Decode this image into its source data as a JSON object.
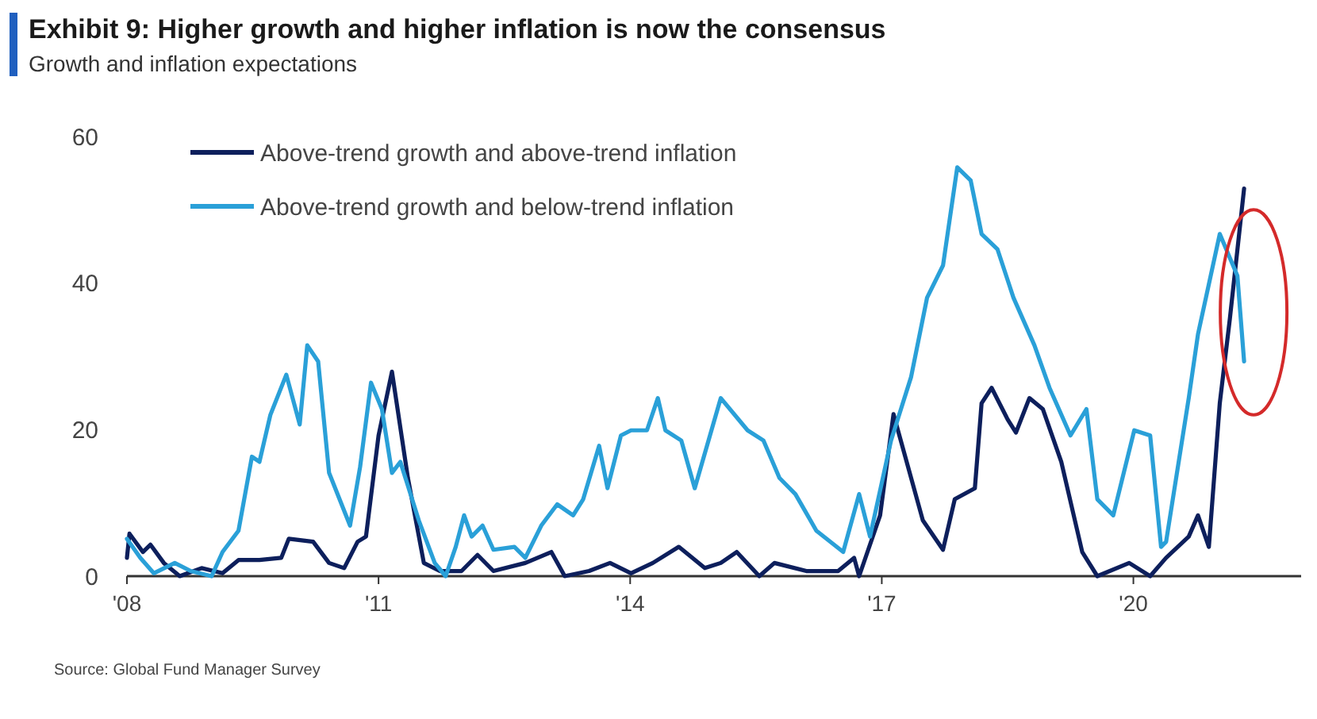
{
  "chart_data": {
    "type": "line",
    "title": "Exhibit 9: Higher growth and higher inflation is now the consensus",
    "subtitle": "Growth and inflation expectations",
    "annotations": [
      "Source: Global Fund Manager Survey"
    ],
    "xlim": [
      2008,
      2022
    ],
    "xticks": [
      {
        "value": 2008,
        "label": "'08"
      },
      {
        "value": 2011,
        "label": "'11"
      },
      {
        "value": 2014,
        "label": "'14"
      },
      {
        "value": 2017,
        "label": "'17"
      },
      {
        "value": 2020,
        "label": "'20"
      }
    ],
    "ylim": [
      0,
      60
    ],
    "yticks": [
      0,
      20,
      40,
      60
    ],
    "grid": false,
    "legend": "top left",
    "marker": "none",
    "line_style": "solid",
    "series": [
      {
        "name": "Above-trend growth and above-trend inflation",
        "color": "#0d1f5c",
        "x": [
          2008.0,
          2008.03,
          2008.19,
          2008.28,
          2008.44,
          2008.63,
          2008.89,
          2009.14,
          2009.33,
          2009.58,
          2009.84,
          2009.93,
          2010.22,
          2010.41,
          2010.59,
          2010.75,
          2010.85,
          2011.0,
          2011.16,
          2011.35,
          2011.54,
          2011.73,
          2011.99,
          2012.18,
          2012.37,
          2012.75,
          2013.06,
          2013.22,
          2013.51,
          2013.76,
          2014.01,
          2014.27,
          2014.58,
          2014.89,
          2015.08,
          2015.27,
          2015.54,
          2015.72,
          2016.1,
          2016.48,
          2016.67,
          2016.73,
          2016.98,
          2017.14,
          2017.49,
          2017.73,
          2017.87,
          2018.11,
          2018.19,
          2018.31,
          2018.5,
          2018.6,
          2018.76,
          2018.92,
          2019.14,
          2019.39,
          2019.57,
          2019.95,
          2020.2,
          2020.39,
          2020.66,
          2020.77,
          2020.9,
          2021.03,
          2021.15,
          2021.32
        ],
        "values": [
          2.5,
          5.8,
          3.3,
          4.3,
          1.8,
          0,
          1.1,
          0.4,
          2.2,
          2.2,
          2.5,
          5.1,
          4.7,
          1.8,
          1.1,
          4.7,
          5.4,
          19.2,
          27.9,
          13.4,
          1.8,
          0.7,
          0.7,
          2.9,
          0.7,
          1.8,
          3.3,
          0,
          0.7,
          1.8,
          0.4,
          1.8,
          4,
          1.1,
          1.8,
          3.3,
          0,
          1.8,
          0.7,
          0.7,
          2.5,
          0,
          8.3,
          22.1,
          7.6,
          3.6,
          10.5,
          12,
          23.6,
          25.7,
          21.4,
          19.6,
          24.3,
          22.8,
          15.6,
          3.3,
          0,
          1.8,
          0,
          2.5,
          5.4,
          8.3,
          4,
          23.6,
          35.1,
          52.9
        ]
      },
      {
        "name": "Above-trend growth and below-trend inflation",
        "color": "#2aa0d8",
        "x": [
          2008.0,
          2008.16,
          2008.32,
          2008.57,
          2008.76,
          2009.01,
          2009.14,
          2009.33,
          2009.49,
          2009.58,
          2009.71,
          2009.9,
          2010.06,
          2010.15,
          2010.28,
          2010.41,
          2010.66,
          2010.78,
          2010.91,
          2011.04,
          2011.16,
          2011.26,
          2011.48,
          2011.67,
          2011.8,
          2011.92,
          2012.02,
          2012.11,
          2012.24,
          2012.37,
          2012.62,
          2012.75,
          2012.94,
          2013.13,
          2013.32,
          2013.44,
          2013.63,
          2013.73,
          2013.89,
          2014.01,
          2014.2,
          2014.33,
          2014.42,
          2014.61,
          2014.77,
          2015.08,
          2015.4,
          2015.59,
          2015.78,
          2015.97,
          2016.22,
          2016.54,
          2016.73,
          2016.86,
          2017.11,
          2017.35,
          2017.54,
          2017.73,
          2017.9,
          2018.06,
          2018.19,
          2018.38,
          2018.57,
          2018.82,
          2019.0,
          2019.25,
          2019.44,
          2019.57,
          2019.76,
          2020.01,
          2020.2,
          2020.33,
          2020.39,
          2020.66,
          2020.77,
          2021.03,
          2021.24,
          2021.32
        ],
        "values": [
          5.1,
          2.5,
          0.4,
          1.8,
          0.7,
          0,
          3.3,
          6.2,
          16.3,
          15.6,
          22,
          27.5,
          20.7,
          31.5,
          29.3,
          14.1,
          6.9,
          14.9,
          26.4,
          22.8,
          14.1,
          15.6,
          7.6,
          1.8,
          0,
          4,
          8.3,
          5.4,
          6.9,
          3.6,
          4,
          2.5,
          6.9,
          9.8,
          8.3,
          10.5,
          17.8,
          12,
          19.2,
          19.9,
          19.9,
          24.3,
          19.9,
          18.5,
          12,
          24.3,
          19.9,
          18.5,
          13.4,
          11.2,
          6.2,
          3.3,
          11.2,
          5.4,
          18.5,
          27.2,
          38,
          42.4,
          55.8,
          54,
          46.7,
          44.6,
          38,
          31.5,
          25.7,
          19.2,
          22.8,
          10.5,
          8.3,
          19.9,
          19.2,
          4,
          4.7,
          24.3,
          33,
          46.7,
          41,
          29.3
        ]
      }
    ]
  }
}
